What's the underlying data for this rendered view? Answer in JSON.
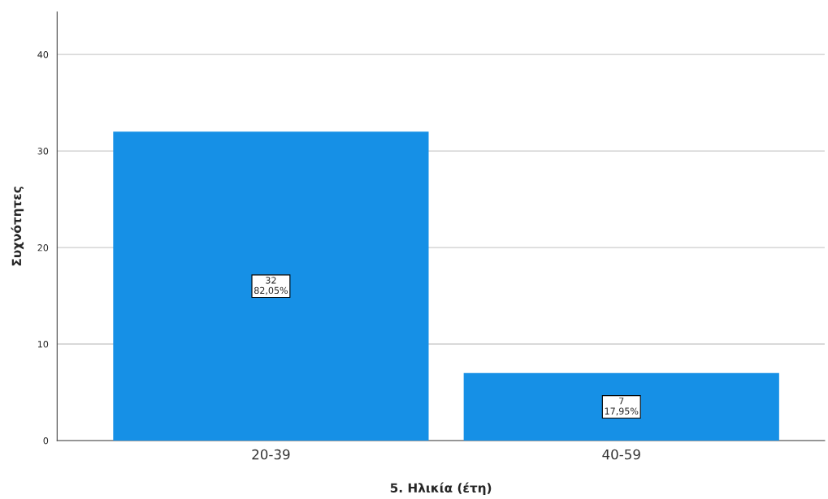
{
  "chart_data": {
    "type": "bar",
    "xlabel": "5. Ηλικία (έτη)",
    "ylabel": "Συχνότητες",
    "categories": [
      "20-39",
      "40-59"
    ],
    "values": [
      32,
      7
    ],
    "color": "#1690e6",
    "value_labels": [
      "32\n82,05%",
      "7\n17,95%"
    ],
    "ylim": [
      0,
      44.4
    ],
    "yticks": [
      0,
      10,
      20,
      30,
      40
    ],
    "grid": "y"
  }
}
